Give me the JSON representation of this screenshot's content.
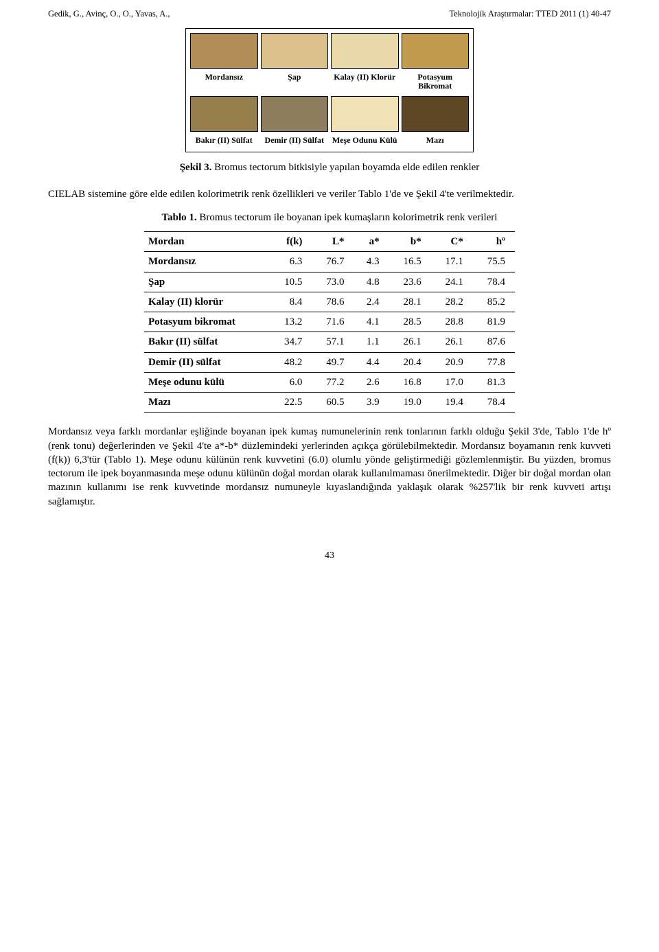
{
  "header": {
    "left": "Gedik, G., Avinç, O., O., Yavas, A.,",
    "right": "Teknolojik Araştırmalar: TTED 2011 (1) 40-47"
  },
  "swatches": {
    "row1": [
      {
        "label": "Mordansız",
        "color": "#b08e55"
      },
      {
        "label": "Şap",
        "color": "#dcc18a"
      },
      {
        "label": "Kalay (II) Klorür",
        "color": "#e9d8a8"
      },
      {
        "label": "Potasyum Bikromat",
        "color": "#c39b4f"
      }
    ],
    "row2": [
      {
        "label": "Bakır (II) Sülfat",
        "color": "#967f4c"
      },
      {
        "label": "Demir (II) Sülfat",
        "color": "#8f7e5d"
      },
      {
        "label": "Meşe Odunu Külü",
        "color": "#f0e2b4"
      },
      {
        "label": "Mazı",
        "color": "#5e4725"
      }
    ]
  },
  "figure": {
    "caption_bold": "Şekil 3.",
    "caption_rest": " Bromus tectorum bitkisiyle yapılan boyamda elde edilen renkler"
  },
  "intro": "CIELAB sistemine göre elde edilen kolorimetrik renk özellikleri ve veriler Tablo 1'de ve Şekil 4'te verilmektedir.",
  "table": {
    "caption_bold": "Tablo 1.",
    "caption_rest": " Bromus tectorum ile boyanan ipek kumaşların kolorimetrik renk verileri",
    "headers": [
      "Mordan",
      "f(k)",
      "L*",
      "a*",
      "b*",
      "C*",
      "hº"
    ],
    "rows": [
      {
        "label": "Mordansız",
        "vals": [
          "6.3",
          "76.7",
          "4.3",
          "16.5",
          "17.1",
          "75.5"
        ]
      },
      {
        "label": "Şap",
        "vals": [
          "10.5",
          "73.0",
          "4.8",
          "23.6",
          "24.1",
          "78.4"
        ]
      },
      {
        "label": "Kalay (II) klorür",
        "vals": [
          "8.4",
          "78.6",
          "2.4",
          "28.1",
          "28.2",
          "85.2"
        ]
      },
      {
        "label": "Potasyum bikromat",
        "vals": [
          "13.2",
          "71.6",
          "4.1",
          "28.5",
          "28.8",
          "81.9"
        ]
      },
      {
        "label": "Bakır (II) sülfat",
        "vals": [
          "34.7",
          "57.1",
          "1.1",
          "26.1",
          "26.1",
          "87.6"
        ]
      },
      {
        "label": "Demir (II) sülfat",
        "vals": [
          "48.2",
          "49.7",
          "4.4",
          "20.4",
          "20.9",
          "77.8"
        ]
      },
      {
        "label": "Meşe odunu külü",
        "vals": [
          "6.0",
          "77.2",
          "2.6",
          "16.8",
          "17.0",
          "81.3"
        ]
      },
      {
        "label": "Mazı",
        "vals": [
          "22.5",
          "60.5",
          "3.9",
          "19.0",
          "19.4",
          "78.4"
        ]
      }
    ]
  },
  "body": "Mordansız veya farklı mordanlar eşliğinde boyanan ipek kumaş numunelerinin renk tonlarının farklı olduğu Şekil 3'de, Tablo 1'de hº (renk tonu) değerlerinden ve Şekil 4'te a*-b* düzlemindeki yerlerinden açıkça görülebilmektedir. Mordansız boyamanın renk kuvveti (f(k)) 6,3'tür (Tablo 1). Meşe odunu külünün renk kuvvetini (6.0) olumlu yönde geliştirmediği gözlemlenmiştir. Bu yüzden, bromus tectorum ile ipek boyanmasında meşe odunu külünün doğal mordan olarak kullanılmaması önerilmektedir. Diğer bir doğal mordan olan mazının kullanımı ise renk kuvvetinde mordansız numuneyle kıyaslandığında yaklaşık olarak %257'lik bir renk kuvveti artışı sağlamıştır.",
  "pagenum": "43"
}
